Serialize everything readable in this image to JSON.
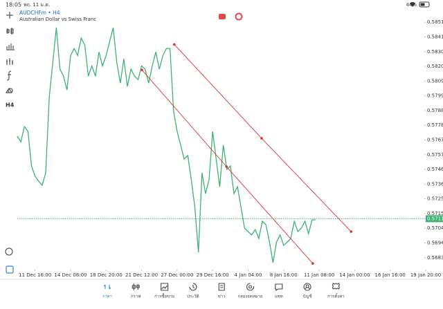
{
  "status_bar": {
    "time": "18:05",
    "date": "พฤ. 11 ม.ค.",
    "battery": "44%"
  },
  "header": {
    "symbol": "AUDCHFm • H4",
    "description": "Australian Dollar vs Swiss Franc"
  },
  "toolbar": {
    "timeframe": "H4"
  },
  "chart_data": {
    "type": "line",
    "x": [
      -5,
      -4,
      -3,
      -2,
      -1,
      0,
      1,
      2,
      3,
      4,
      5,
      6,
      7,
      8,
      9,
      10,
      11,
      12,
      13,
      14,
      15,
      16,
      17,
      18,
      19,
      20,
      21,
      22,
      23,
      24,
      25,
      26,
      27,
      28,
      29,
      30,
      31,
      32,
      33,
      34,
      35,
      36,
      37,
      38,
      39,
      40,
      41,
      42,
      43,
      44,
      45,
      46,
      47,
      48,
      49,
      50,
      51,
      52,
      53,
      54,
      55,
      56,
      57,
      58,
      59,
      60,
      61,
      62,
      63,
      64,
      65,
      66,
      67,
      68,
      69,
      70,
      71,
      72,
      73,
      74,
      75,
      76,
      77,
      78,
      79
    ],
    "series": [
      {
        "name": "AUDCHFm",
        "color": "#3cb371",
        "values": [
          0.57702,
          0.57662,
          0.57771,
          0.57736,
          0.5749,
          0.57416,
          0.57381,
          0.57352,
          0.5744,
          0.57983,
          0.58229,
          0.58476,
          0.5818,
          0.58131,
          0.58032,
          0.58278,
          0.58328,
          0.58278,
          0.58402,
          0.58352,
          0.58131,
          0.58204,
          0.58131,
          0.58303,
          0.58204,
          0.58278,
          0.58377,
          0.58476,
          0.58229,
          0.58081,
          0.58254,
          0.58057,
          0.5818,
          0.58131,
          0.58106,
          0.58204,
          0.5818,
          0.58081,
          0.58204,
          0.58303,
          0.5818,
          0.58278,
          0.58328,
          0.58328,
          0.57884,
          0.57736,
          0.57638,
          0.57539,
          0.57564,
          0.57391,
          0.57194,
          0.56873,
          0.5744,
          0.57292,
          0.57391,
          0.57736,
          0.57539,
          0.57342,
          0.57638,
          0.57465,
          0.5749,
          0.57292,
          0.57342,
          0.57194,
          0.57046,
          0.57021,
          0.56997,
          0.57036,
          0.56972,
          0.57095,
          0.57071,
          0.56947,
          0.56799,
          0.56947,
          0.56997,
          0.56923,
          0.56947,
          0.56972,
          0.57095,
          0.57021,
          0.57046,
          0.57095,
          0.57006,
          0.57105,
          0.57105
        ]
      }
    ],
    "trend_lines": [
      {
        "color": "#e03030",
        "x": [
          30.1,
          53.9,
          78.2
        ],
        "values": [
          0.58175,
          0.57485,
          0.56794
        ]
      },
      {
        "color": "#e03030",
        "x": [
          39.2,
          63.8,
          89.0
        ],
        "values": [
          0.58357,
          0.57687,
          0.57021
        ]
      }
    ],
    "current_price": {
      "value": 0.57113,
      "color": "#3cb371"
    },
    "xlim": [
      -5,
      110
    ],
    "xticks": [
      {
        "value": 0,
        "label": "11 Dec 16:00"
      },
      {
        "value": 10,
        "label": "14 Dec 08:00"
      },
      {
        "value": 20,
        "label": "18 Dec 20:00"
      },
      {
        "value": 30,
        "label": "21 Dec 12:00"
      },
      {
        "value": 40,
        "label": "27 Dec 00:00"
      },
      {
        "value": 50,
        "label": "29 Dec 16:00"
      },
      {
        "value": 60,
        "label": "4 Jan 04:00"
      },
      {
        "value": 70,
        "label": "8 Jan 16:00"
      },
      {
        "value": 80,
        "label": "11 Jan 08:00"
      },
      {
        "value": 90,
        "label": "14 Jan 00:00"
      },
      {
        "value": 100,
        "label": "16 Jan 16:00"
      },
      {
        "value": 110,
        "label": "19 Jan 20:00"
      }
    ],
    "ylim": [
      0.5675,
      0.586
    ],
    "yticks": [
      0.58515,
      {
        "value": 0.5841,
        "label": "0.58410"
      },
      0.58305,
      {
        "value": 0.582,
        "label": "0.58200"
      },
      0.58095,
      {
        "value": 0.5799,
        "label": "0.57990"
      },
      0.57885,
      {
        "value": 0.5778,
        "label": "0.57780"
      },
      0.57675,
      {
        "value": 0.5757,
        "label": "0.57570"
      },
      0.57465,
      {
        "value": 0.5736,
        "label": "0.57360"
      },
      0.57255,
      {
        "value": 0.5715,
        "label": "0.57150"
      },
      0.57045,
      {
        "value": 0.5694,
        "label": "0.56940"
      },
      0.56835
    ]
  },
  "nav": {
    "items": [
      "ราคา",
      "กราฟ",
      "การซื้อขาย",
      "ประวัติ",
      "ข่าว",
      "กล่องจดหมาย",
      "แชท",
      "บัญชี",
      "การตั้งค่า"
    ],
    "active": 0,
    "active_color": "#1e88e5"
  }
}
